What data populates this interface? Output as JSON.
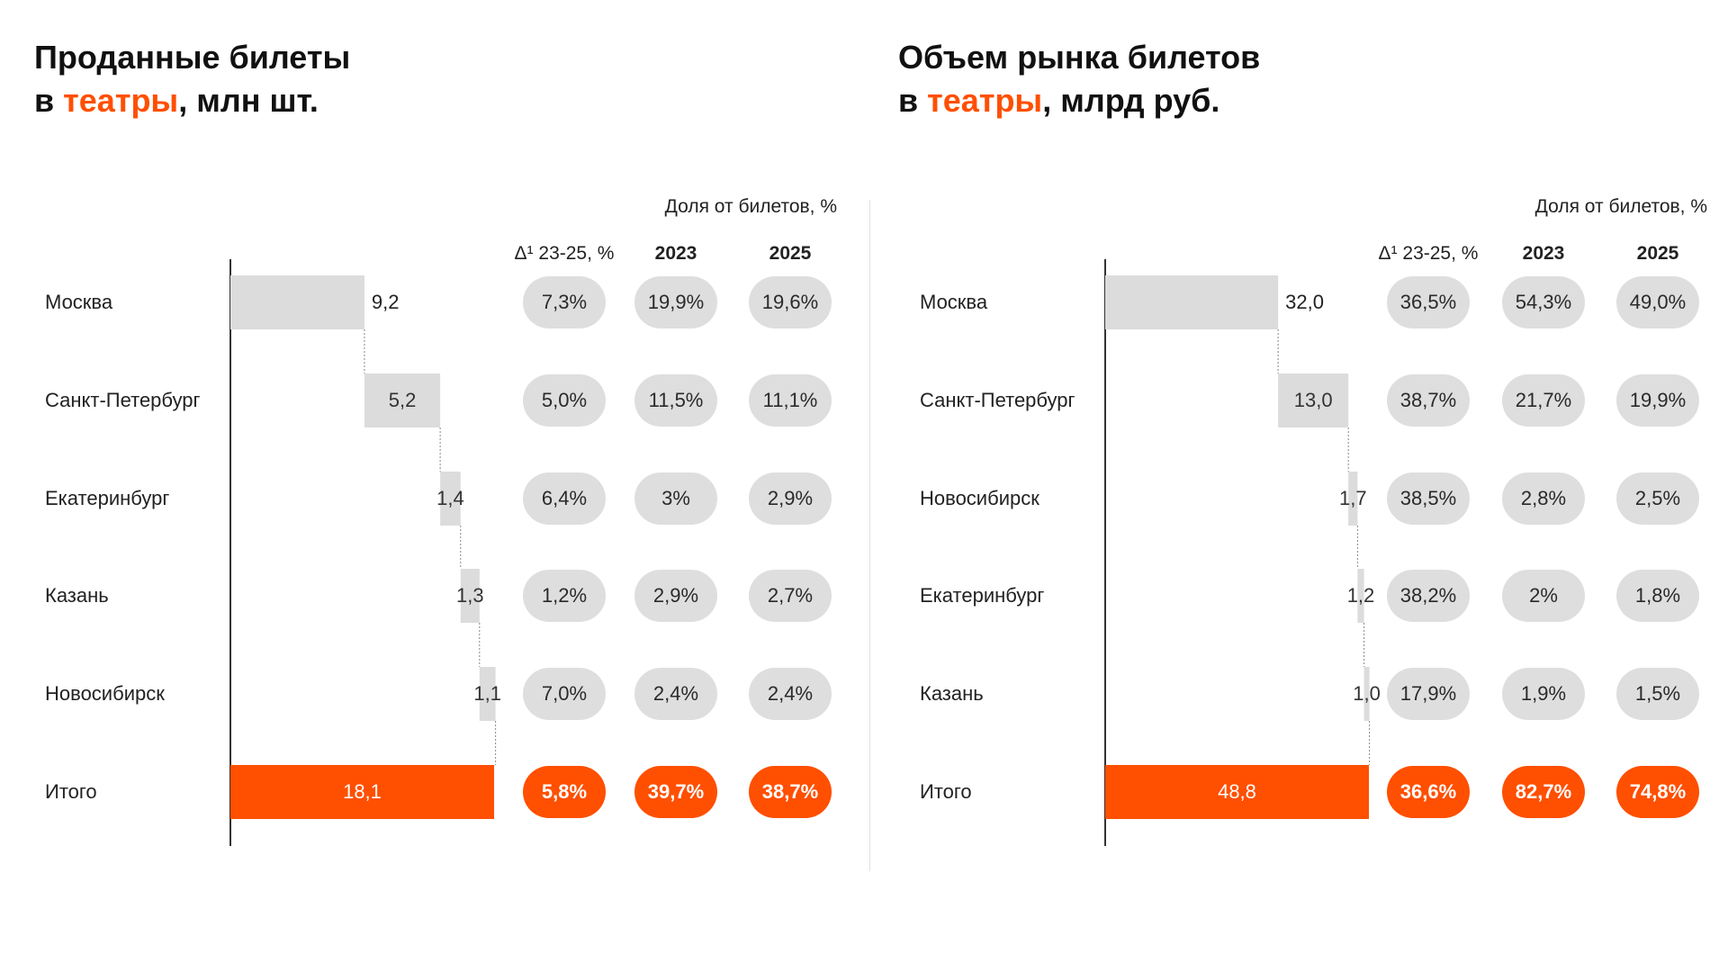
{
  "colors": {
    "accent": "#ff4f00",
    "bar_gray": "#dcdcdc",
    "pill_gray": "#dedede",
    "text": "#222222"
  },
  "headers": {
    "share": "Доля от билетов, %",
    "delta": "Δ¹ 23-25, %",
    "year1": "2023",
    "year2": "2025"
  },
  "chart_data": [
    {
      "type": "bar",
      "title_parts": [
        "Проданные билеты",
        "в ",
        "театры",
        ", млн шт."
      ],
      "categories": [
        "Москва",
        "Санкт-Петербург",
        "Екатеринбург",
        "Казань",
        "Новосибирск",
        "Итого"
      ],
      "values": [
        9.2,
        5.2,
        1.4,
        1.3,
        1.1,
        18.1
      ],
      "labels": [
        "9,2",
        "5,2",
        "1,4",
        "1,3",
        "1,1",
        "18,1"
      ],
      "delta": [
        "7,3%",
        "5,0%",
        "6,4%",
        "1,2%",
        "7,0%",
        "5,8%"
      ],
      "share_2023": [
        "19,9%",
        "11,5%",
        "3%",
        "2,9%",
        "2,4%",
        "39,7%"
      ],
      "share_2025": [
        "19,6%",
        "11,1%",
        "2,9%",
        "2,7%",
        "2,4%",
        "38,7%"
      ]
    },
    {
      "type": "bar",
      "title_parts": [
        "Объем рынка билетов",
        "в ",
        "театры",
        ", млрд руб."
      ],
      "categories": [
        "Москва",
        "Санкт-Петербург",
        "Новосибирск",
        "Екатеринбург",
        "Казань",
        "Итого"
      ],
      "values": [
        32.0,
        13.0,
        1.7,
        1.2,
        1.0,
        48.8
      ],
      "labels": [
        "32,0",
        "13,0",
        "1,7",
        "1,2",
        "1,0",
        "48,8"
      ],
      "delta": [
        "36,5%",
        "38,7%",
        "38,5%",
        "38,2%",
        "17,9%",
        "36,6%"
      ],
      "share_2023": [
        "54,3%",
        "21,7%",
        "2,8%",
        "2%",
        "1,9%",
        "82,7%"
      ],
      "share_2025": [
        "49,0%",
        "19,9%",
        "2,5%",
        "1,8%",
        "1,5%",
        "74,8%"
      ]
    }
  ]
}
